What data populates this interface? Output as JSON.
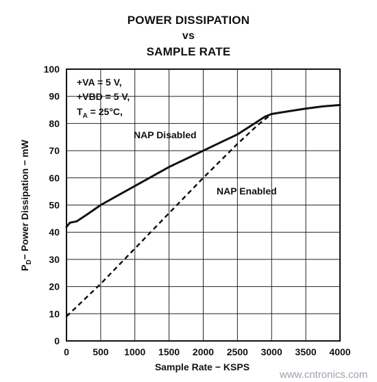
{
  "chart_data": {
    "type": "line",
    "title_lines": [
      "POWER DISSIPATION",
      "vs",
      "SAMPLE RATE"
    ],
    "xlabel": "Sample Rate − KSPS",
    "ylabel_main": "P",
    "ylabel_sub": "D",
    "ylabel_rest": "− Power Dissipation − mW",
    "xlim": [
      0,
      4000
    ],
    "ylim": [
      0,
      100
    ],
    "x_ticks": [
      0,
      500,
      1000,
      1500,
      2000,
      2500,
      3000,
      3500,
      4000
    ],
    "y_ticks": [
      0,
      10,
      20,
      30,
      40,
      50,
      60,
      70,
      80,
      90,
      100
    ],
    "x_tick_labels": [
      "0",
      "500",
      "1000",
      "1500",
      "2000",
      "2500",
      "3000",
      "3500",
      "4000"
    ],
    "y_tick_labels": [
      "0",
      "10",
      "20",
      "30",
      "40",
      "50",
      "60",
      "70",
      "80",
      "90",
      "100"
    ],
    "grid": true,
    "conditions": {
      "line1": "+VA = 5 V,",
      "line2": "+VBD = 5 V,",
      "line3_main": "T",
      "line3_sub": "A",
      "line3_rest": " = 25°C,"
    },
    "annotations": [
      "NAP Disabled",
      "NAP Enabled"
    ],
    "series": [
      {
        "style": "solid",
        "x": [
          0,
          50,
          150,
          300,
          500,
          750,
          1000,
          1250,
          1500,
          1750,
          2000,
          2250,
          2500,
          2750,
          2900,
          3000,
          3250,
          3500,
          3750,
          4000
        ],
        "y": [
          42,
          43.5,
          44,
          46.5,
          50,
          53.5,
          57,
          60.5,
          64,
          67,
          70,
          73,
          76,
          80,
          82.5,
          83.5,
          84.5,
          85.5,
          86.3,
          86.8
        ]
      },
      {
        "style": "dashed",
        "x": [
          0,
          500,
          1000,
          1500,
          2000,
          2500,
          2800,
          3000,
          3250,
          3500,
          3750,
          4000
        ],
        "y": [
          9,
          21,
          34,
          47,
          60,
          72.5,
          79.5,
          83.5,
          84.5,
          85.5,
          86.3,
          86.8
        ]
      }
    ]
  },
  "watermark": "www.cntronics.com"
}
